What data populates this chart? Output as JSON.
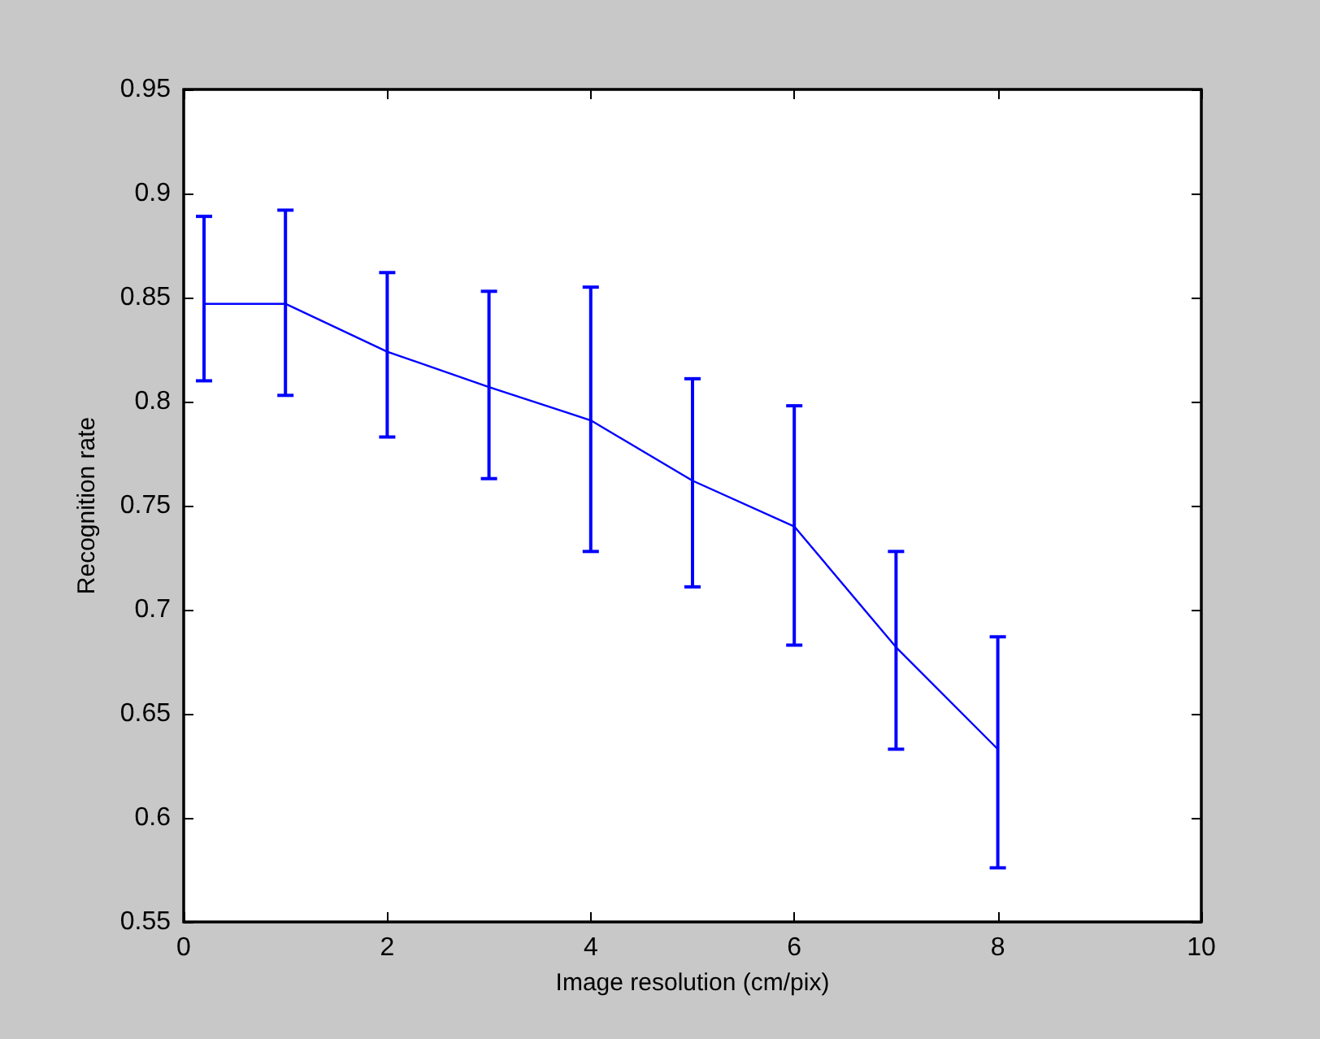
{
  "chart_data": {
    "type": "line",
    "xlabel": "Image resolution (cm/pix)",
    "ylabel": "Recognition rate",
    "x": [
      0.2,
      1,
      2,
      3,
      4,
      5,
      6,
      7,
      8
    ],
    "series": [
      {
        "color": "#0000ff",
        "values": [
          0.847,
          0.847,
          0.824,
          0.807,
          0.791,
          0.762,
          0.74,
          0.682,
          0.633
        ],
        "errors": [
          [
            0.81,
            0.889
          ],
          [
            0.803,
            0.892
          ],
          [
            0.783,
            0.862
          ],
          [
            0.763,
            0.853
          ],
          [
            0.728,
            0.855
          ],
          [
            0.711,
            0.811
          ],
          [
            0.683,
            0.798
          ],
          [
            0.633,
            0.728
          ],
          [
            0.576,
            0.687
          ]
        ]
      }
    ],
    "xlim": [
      0,
      10
    ],
    "xticks": [
      0,
      2,
      4,
      6,
      8,
      10
    ],
    "ylim": [
      0.55,
      0.95
    ],
    "yticks": [
      0.55,
      0.6,
      0.65,
      0.7,
      0.75,
      0.8,
      0.85,
      0.9,
      0.95
    ],
    "grid": false,
    "marker": "none",
    "line_style": "solid"
  }
}
